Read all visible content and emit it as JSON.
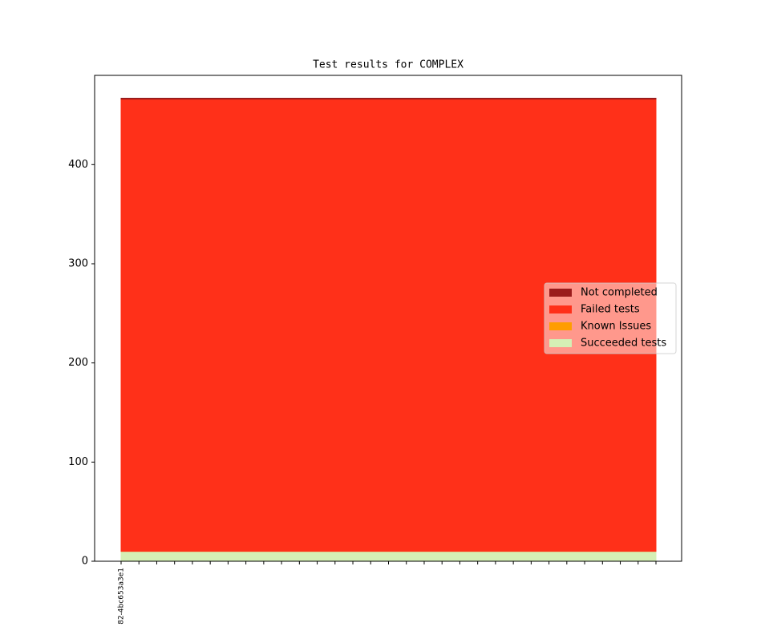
{
  "chart_data": {
    "type": "stacked-area",
    "title": "Test results for COMPLEX",
    "categories": [
      "82-4bc653a3e1",
      null,
      null,
      null,
      null,
      null,
      null,
      null,
      null,
      null,
      null,
      null,
      null,
      null,
      null,
      null,
      null,
      null,
      null,
      null,
      null,
      null,
      null,
      null,
      null,
      null,
      null,
      null,
      null,
      null,
      null
    ],
    "series": [
      {
        "name": "Succeeded tests",
        "color": "#d5efb5",
        "values": [
          10,
          10,
          10,
          10,
          10,
          10,
          10,
          10,
          10,
          10,
          10,
          10,
          10,
          10,
          10,
          10,
          10,
          10,
          10,
          10,
          10,
          10,
          10,
          10,
          10,
          10,
          10,
          10,
          10,
          10,
          10
        ]
      },
      {
        "name": "Known Issues",
        "color": "#ff9d00",
        "values": [
          0,
          0,
          0,
          0,
          0,
          0,
          0,
          0,
          0,
          0,
          0,
          0,
          0,
          0,
          0,
          0,
          0,
          0,
          0,
          0,
          0,
          0,
          0,
          0,
          0,
          0,
          0,
          0,
          0,
          0,
          0
        ]
      },
      {
        "name": "Failed tests",
        "color": "#ff3019",
        "values": [
          456,
          456,
          456,
          456,
          456,
          456,
          456,
          456,
          456,
          456,
          456,
          456,
          456,
          456,
          456,
          456,
          456,
          456,
          456,
          456,
          456,
          456,
          456,
          456,
          456,
          456,
          456,
          456,
          456,
          456,
          456
        ]
      },
      {
        "name": "Not completed",
        "color": "#9b1c1c",
        "values": [
          1,
          1,
          1,
          1,
          1,
          1,
          1,
          1,
          1,
          1,
          1,
          1,
          1,
          1,
          1,
          1,
          1,
          1,
          1,
          1,
          1,
          1,
          1,
          1,
          1,
          1,
          1,
          1,
          1,
          1,
          1
        ]
      }
    ],
    "ylim": [
      0,
      490
    ],
    "yticks": [
      0,
      100,
      200,
      300,
      400
    ],
    "legend": "right"
  }
}
